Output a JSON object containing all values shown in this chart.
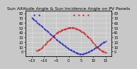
{
  "title": "Sun Altitude Angle & Sun Incidence Angle on PV Panels",
  "bg_color": "#c8c8c8",
  "plot_bg_color": "#c8c8c8",
  "grid_color": "#ffffff",
  "blue_color": "#0000cc",
  "red_color": "#cc0000",
  "xlim": [
    -17.5,
    17.5
  ],
  "ylim_left": [
    -10,
    85
  ],
  "ylim_right": [
    -10,
    85
  ],
  "x_ticks": [
    -15,
    -10,
    -5,
    0,
    5,
    10,
    15
  ],
  "y_ticks_left": [
    0,
    10,
    20,
    30,
    40,
    50,
    60,
    70,
    80
  ],
  "y_ticks_right": [
    0,
    10,
    20,
    30,
    40,
    50,
    60,
    70,
    80
  ],
  "title_fontsize": 4.5,
  "tick_fontsize": 3.5,
  "blue_x": [
    -15,
    -13,
    -11,
    -9,
    -7,
    -5,
    -3,
    -1,
    1,
    3,
    5,
    7,
    9,
    11,
    13,
    15
  ],
  "blue_y": [
    70,
    62,
    53,
    44,
    35,
    26,
    18,
    10,
    3,
    -2,
    -5,
    -3,
    2,
    8,
    15,
    22
  ],
  "red_x": [
    -13,
    -11,
    -9,
    -7,
    -5,
    -3,
    -1,
    1,
    3,
    5,
    7,
    9,
    11,
    13,
    15
  ],
  "red_y": [
    2,
    8,
    18,
    28,
    38,
    44,
    48,
    50,
    48,
    43,
    35,
    25,
    12,
    3,
    -2
  ]
}
